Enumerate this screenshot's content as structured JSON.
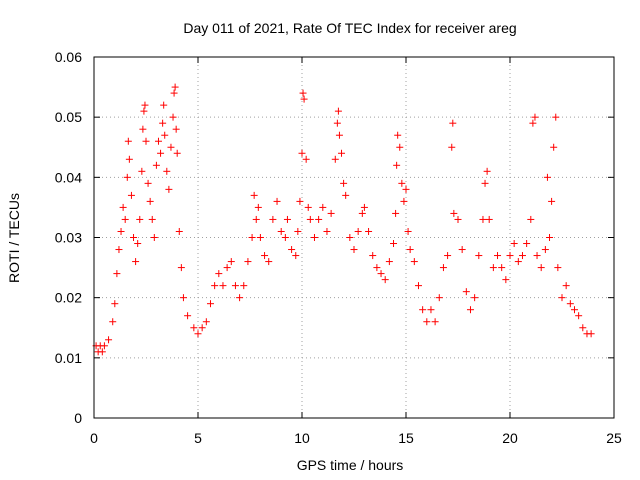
{
  "chart_data": {
    "type": "scatter",
    "title": "Day 011 of 2021, Rate Of TEC Index for receiver areg",
    "xlabel": "GPS time / hours",
    "ylabel": "ROTI / TECUs",
    "xlim": [
      0,
      25
    ],
    "ylim": [
      0,
      0.06
    ],
    "x_ticks": [
      0,
      5,
      10,
      15,
      20,
      25
    ],
    "y_ticks": [
      0,
      0.01,
      0.02,
      0.03,
      0.04,
      0.05,
      0.06
    ],
    "x_tick_labels": [
      "0",
      "5",
      "10",
      "15",
      "20",
      "25"
    ],
    "y_tick_labels": [
      "0",
      "0.01",
      "0.02",
      "0.03",
      "0.04",
      "0.05",
      "0.06"
    ],
    "grid": true,
    "marker": "+",
    "color": "#ff0000",
    "series": [
      {
        "name": "ROTI",
        "points": [
          [
            0.1,
            0.012
          ],
          [
            0.2,
            0.011
          ],
          [
            0.3,
            0.012
          ],
          [
            0.4,
            0.011
          ],
          [
            0.5,
            0.012
          ],
          [
            0.7,
            0.013
          ],
          [
            0.9,
            0.016
          ],
          [
            1.0,
            0.019
          ],
          [
            1.1,
            0.024
          ],
          [
            1.2,
            0.028
          ],
          [
            1.3,
            0.031
          ],
          [
            1.4,
            0.035
          ],
          [
            1.5,
            0.033
          ],
          [
            1.6,
            0.04
          ],
          [
            1.65,
            0.046
          ],
          [
            1.7,
            0.043
          ],
          [
            1.8,
            0.037
          ],
          [
            1.9,
            0.03
          ],
          [
            2.0,
            0.026
          ],
          [
            2.1,
            0.029
          ],
          [
            2.2,
            0.033
          ],
          [
            2.3,
            0.041
          ],
          [
            2.35,
            0.048
          ],
          [
            2.4,
            0.051
          ],
          [
            2.45,
            0.052
          ],
          [
            2.5,
            0.046
          ],
          [
            2.6,
            0.039
          ],
          [
            2.7,
            0.036
          ],
          [
            2.8,
            0.033
          ],
          [
            2.9,
            0.03
          ],
          [
            3.0,
            0.042
          ],
          [
            3.1,
            0.046
          ],
          [
            3.2,
            0.044
          ],
          [
            3.3,
            0.049
          ],
          [
            3.35,
            0.052
          ],
          [
            3.4,
            0.047
          ],
          [
            3.5,
            0.041
          ],
          [
            3.6,
            0.038
          ],
          [
            3.7,
            0.045
          ],
          [
            3.8,
            0.05
          ],
          [
            3.85,
            0.054
          ],
          [
            3.9,
            0.055
          ],
          [
            3.95,
            0.048
          ],
          [
            4.0,
            0.044
          ],
          [
            4.1,
            0.031
          ],
          [
            4.2,
            0.025
          ],
          [
            4.3,
            0.02
          ],
          [
            4.5,
            0.017
          ],
          [
            4.8,
            0.015
          ],
          [
            5.0,
            0.014
          ],
          [
            5.2,
            0.015
          ],
          [
            5.4,
            0.016
          ],
          [
            5.6,
            0.019
          ],
          [
            5.8,
            0.022
          ],
          [
            6.0,
            0.024
          ],
          [
            6.2,
            0.022
          ],
          [
            6.4,
            0.025
          ],
          [
            6.6,
            0.026
          ],
          [
            6.8,
            0.022
          ],
          [
            7.0,
            0.02
          ],
          [
            7.2,
            0.022
          ],
          [
            7.4,
            0.026
          ],
          [
            7.6,
            0.03
          ],
          [
            7.7,
            0.037
          ],
          [
            7.8,
            0.033
          ],
          [
            7.9,
            0.035
          ],
          [
            8.0,
            0.03
          ],
          [
            8.2,
            0.027
          ],
          [
            8.4,
            0.026
          ],
          [
            8.6,
            0.033
          ],
          [
            8.8,
            0.036
          ],
          [
            9.0,
            0.031
          ],
          [
            9.2,
            0.03
          ],
          [
            9.3,
            0.033
          ],
          [
            9.5,
            0.028
          ],
          [
            9.7,
            0.027
          ],
          [
            9.8,
            0.031
          ],
          [
            9.9,
            0.036
          ],
          [
            10.0,
            0.044
          ],
          [
            10.05,
            0.054
          ],
          [
            10.1,
            0.053
          ],
          [
            10.2,
            0.043
          ],
          [
            10.3,
            0.035
          ],
          [
            10.4,
            0.033
          ],
          [
            10.6,
            0.03
          ],
          [
            10.8,
            0.033
          ],
          [
            11.0,
            0.035
          ],
          [
            11.2,
            0.031
          ],
          [
            11.4,
            0.034
          ],
          [
            11.6,
            0.043
          ],
          [
            11.7,
            0.049
          ],
          [
            11.75,
            0.051
          ],
          [
            11.8,
            0.047
          ],
          [
            11.9,
            0.044
          ],
          [
            12.0,
            0.039
          ],
          [
            12.1,
            0.037
          ],
          [
            12.3,
            0.03
          ],
          [
            12.5,
            0.028
          ],
          [
            12.7,
            0.031
          ],
          [
            12.9,
            0.034
          ],
          [
            13.0,
            0.035
          ],
          [
            13.2,
            0.031
          ],
          [
            13.4,
            0.027
          ],
          [
            13.6,
            0.025
          ],
          [
            13.8,
            0.024
          ],
          [
            14.0,
            0.023
          ],
          [
            14.2,
            0.026
          ],
          [
            14.4,
            0.029
          ],
          [
            14.5,
            0.034
          ],
          [
            14.55,
            0.042
          ],
          [
            14.6,
            0.047
          ],
          [
            14.7,
            0.045
          ],
          [
            14.8,
            0.039
          ],
          [
            14.9,
            0.036
          ],
          [
            15.0,
            0.038
          ],
          [
            15.1,
            0.031
          ],
          [
            15.2,
            0.028
          ],
          [
            15.4,
            0.026
          ],
          [
            15.6,
            0.022
          ],
          [
            15.8,
            0.018
          ],
          [
            16.0,
            0.016
          ],
          [
            16.2,
            0.018
          ],
          [
            16.4,
            0.016
          ],
          [
            16.6,
            0.02
          ],
          [
            16.8,
            0.025
          ],
          [
            17.0,
            0.027
          ],
          [
            17.2,
            0.045
          ],
          [
            17.25,
            0.049
          ],
          [
            17.3,
            0.034
          ],
          [
            17.5,
            0.033
          ],
          [
            17.7,
            0.028
          ],
          [
            17.9,
            0.021
          ],
          [
            18.1,
            0.018
          ],
          [
            18.3,
            0.02
          ],
          [
            18.5,
            0.027
          ],
          [
            18.7,
            0.033
          ],
          [
            18.8,
            0.039
          ],
          [
            18.9,
            0.041
          ],
          [
            19.0,
            0.033
          ],
          [
            19.2,
            0.025
          ],
          [
            19.4,
            0.027
          ],
          [
            19.6,
            0.025
          ],
          [
            19.8,
            0.023
          ],
          [
            20.0,
            0.027
          ],
          [
            20.2,
            0.029
          ],
          [
            20.4,
            0.026
          ],
          [
            20.6,
            0.027
          ],
          [
            20.8,
            0.029
          ],
          [
            21.0,
            0.033
          ],
          [
            21.1,
            0.049
          ],
          [
            21.2,
            0.05
          ],
          [
            21.3,
            0.027
          ],
          [
            21.5,
            0.025
          ],
          [
            21.7,
            0.028
          ],
          [
            21.8,
            0.04
          ],
          [
            21.9,
            0.03
          ],
          [
            22.0,
            0.036
          ],
          [
            22.1,
            0.045
          ],
          [
            22.2,
            0.05
          ],
          [
            22.3,
            0.025
          ],
          [
            22.5,
            0.02
          ],
          [
            22.7,
            0.022
          ],
          [
            22.9,
            0.019
          ],
          [
            23.1,
            0.018
          ],
          [
            23.3,
            0.017
          ],
          [
            23.5,
            0.015
          ],
          [
            23.7,
            0.014
          ],
          [
            23.9,
            0.014
          ]
        ]
      }
    ]
  }
}
